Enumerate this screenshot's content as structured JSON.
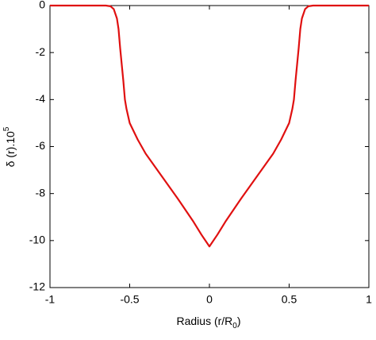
{
  "chart_data": {
    "type": "line",
    "ylabel": [
      "δ (r).10",
      "5"
    ],
    "xlabel": [
      "Radius (r/R",
      "0",
      ")"
    ],
    "x": [
      -1,
      -0.8,
      -0.7,
      -0.65,
      -0.62,
      -0.6,
      -0.58,
      -0.57,
      -0.56,
      -0.55,
      -0.54,
      -0.53,
      -0.52,
      -0.5,
      -0.45,
      -0.4,
      -0.3,
      -0.2,
      -0.1,
      -0.05,
      0,
      0.05,
      0.1,
      0.2,
      0.3,
      0.4,
      0.45,
      0.5,
      0.52,
      0.53,
      0.54,
      0.55,
      0.56,
      0.57,
      0.58,
      0.6,
      0.62,
      0.65,
      0.7,
      0.8,
      1
    ],
    "series": [
      {
        "color": "#e01010",
        "values": [
          0,
          0,
          0,
          0,
          -0.03,
          -0.15,
          -0.55,
          -1,
          -1.8,
          -2.5,
          -3.2,
          -4,
          -4.4,
          -5.0,
          -5.7,
          -6.3,
          -7.25,
          -8.2,
          -9.2,
          -9.75,
          -10.25,
          -9.75,
          -9.2,
          -8.2,
          -7.25,
          -6.3,
          -5.7,
          -5.0,
          -4.4,
          -4,
          -3.2,
          -2.5,
          -1.8,
          -1,
          -0.55,
          -0.15,
          -0.03,
          0,
          0,
          0,
          0
        ]
      }
    ],
    "xlim": [
      -1,
      1
    ],
    "xticks": [
      -1,
      -0.5,
      0,
      0.5,
      1
    ],
    "ylim": [
      -12,
      0
    ],
    "yticks": [
      0,
      -2,
      -4,
      -6,
      -8,
      -10,
      -12
    ],
    "grid": false
  }
}
